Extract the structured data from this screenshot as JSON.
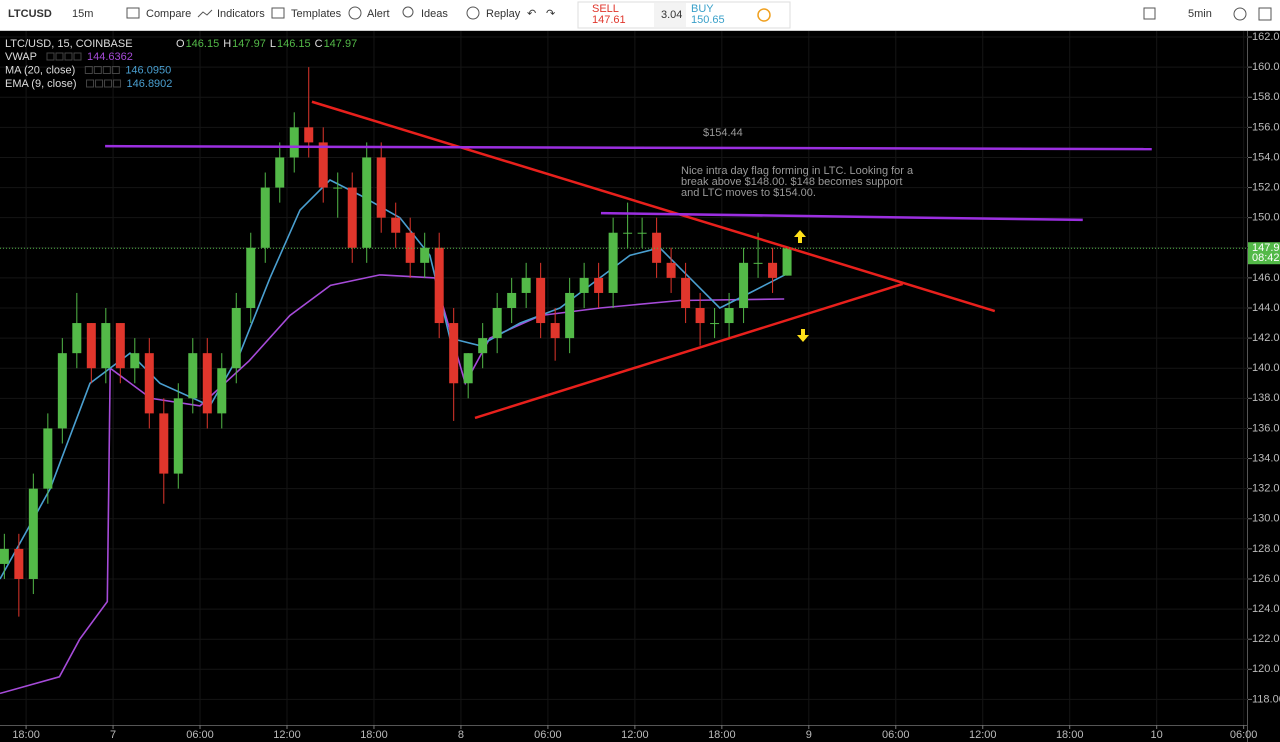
{
  "toolbar": {
    "symbol": "LTCUSD",
    "interval": "15m",
    "compare": "Compare",
    "indicators": "Indicators",
    "templates": "Templates",
    "alert": "Alert",
    "ideas": "Ideas",
    "replay": "Replay",
    "sell_label": "SELL",
    "sell_price": "147.61",
    "spread": "3.04",
    "buy_label": "BUY",
    "buy_price": "150.65",
    "right_interval": "5min"
  },
  "chart_data": {
    "type": "candlestick",
    "title": "LTC/USD, 15, COINBASE",
    "ohlc_legend": [
      {
        "label": "O",
        "value": "146.15"
      },
      {
        "label": "H",
        "value": "147.97"
      },
      {
        "label": "L",
        "value": "146.15"
      },
      {
        "label": "C",
        "value": "147.97"
      }
    ],
    "x": [
      -1.5,
      -0.5,
      0.5,
      1.5,
      2.5,
      3.5,
      4.5,
      5.5,
      6.5,
      7.5,
      8.5,
      9.5,
      10.5,
      11.5,
      12.5,
      13.5,
      14.5,
      15.5,
      16.5,
      17.5,
      18.5,
      19.5,
      20.5,
      21.5,
      22.5,
      23.5,
      24.5,
      25.5,
      26.5,
      27.5,
      28.5,
      29.5,
      30.5,
      31.5,
      32.5,
      33.5,
      34.5,
      35.5,
      36.5,
      37.5,
      38.5,
      39.5,
      40.5,
      41.5,
      42.5,
      43.5,
      44.5,
      45.5,
      46.5,
      47.5,
      48.5,
      49.5,
      50.5,
      51.5,
      52.5
    ],
    "open": [
      127,
      128,
      126,
      132,
      136,
      141,
      143,
      140,
      143,
      140,
      141,
      137,
      133,
      138,
      141,
      137,
      140,
      144,
      148,
      152,
      154,
      156,
      155,
      152,
      152,
      148,
      154,
      150,
      149,
      147,
      148,
      143,
      139,
      141,
      142,
      144,
      145,
      146,
      143,
      142,
      145,
      146,
      145,
      149,
      149,
      149,
      147,
      146,
      144,
      143,
      143,
      144,
      147,
      147,
      146.15
    ],
    "high": [
      129,
      129,
      133,
      137,
      142,
      145,
      143,
      144,
      143,
      142,
      142,
      138,
      139,
      142,
      142,
      141,
      145,
      149,
      153,
      155,
      157,
      160,
      156,
      153,
      153,
      155,
      155,
      151,
      150,
      149,
      149,
      144,
      141,
      143,
      145,
      146,
      147,
      147,
      144,
      146,
      147,
      147,
      150,
      151,
      150,
      150,
      148,
      147,
      145,
      144,
      145,
      148,
      149,
      148,
      147.97
    ],
    "low": [
      126,
      123.5,
      125,
      131,
      135,
      140,
      139,
      139,
      139,
      139,
      136,
      131,
      132,
      137,
      136,
      136,
      139,
      143,
      147,
      151,
      153,
      154,
      151,
      150,
      147,
      147,
      149,
      148,
      146,
      146,
      142,
      136.5,
      138,
      140,
      141,
      143,
      144,
      142,
      140.5,
      141,
      144,
      144,
      144,
      148,
      148,
      146,
      145,
      143,
      141.5,
      142,
      142,
      143,
      146,
      145,
      146.15
    ],
    "close": [
      128,
      126,
      132,
      136,
      141,
      143,
      140,
      143,
      140,
      141,
      137,
      133,
      138,
      141,
      137,
      140,
      144,
      148,
      152,
      154,
      156,
      155,
      152,
      152,
      148,
      154,
      150,
      149,
      147,
      148,
      143,
      139,
      141,
      142,
      144,
      145,
      146,
      143,
      142,
      145,
      146,
      145,
      149,
      149,
      149,
      147,
      146,
      144,
      143,
      143,
      144,
      147,
      147,
      146,
      147.97
    ],
    "up_color": "#53b948",
    "down_color": "#e0362c",
    "indicators": [
      {
        "name": "VWAP",
        "value": "144.6362",
        "color": "#a64bd9",
        "x": [
          -1.8,
          2.3,
          3.7,
          5.6,
          5.8,
          8.6,
          12,
          15.4,
          18.2,
          21,
          24.4,
          28.2,
          30.3,
          32,
          35.5,
          39.6,
          45.1,
          52.3
        ],
        "values": [
          118.4,
          119.5,
          122,
          124.5,
          140,
          138,
          137.5,
          140.5,
          143.5,
          145.5,
          146.2,
          146,
          139,
          142,
          143.5,
          144,
          144.5,
          144.6
        ]
      },
      {
        "name": "MA (20, close)",
        "value": "146.0950"
      },
      {
        "name": "EMA (9, close)",
        "value": "146.8902",
        "color": "#4a9fd0",
        "x": [
          -1.8,
          1.66,
          4.41,
          7.17,
          9.24,
          12.69,
          14.76,
          16.83,
          18.9,
          20.97,
          23.03,
          25.79,
          27.86,
          29.24,
          31.31,
          34.07,
          36.83,
          39.59,
          41.66,
          43.72,
          45.79,
          47.86,
          49.93,
          52.34
        ],
        "values": [
          126,
          132,
          139,
          141,
          139,
          137.5,
          141,
          146,
          150.5,
          152.5,
          151.5,
          150,
          147.5,
          142,
          141.5,
          143,
          144,
          146,
          147.5,
          148,
          146,
          144,
          145,
          146.2
        ]
      }
    ],
    "drawings": [
      {
        "color": "#e8201c",
        "x": [
          19.72,
          66.83
        ],
        "y": [
          157.7,
          143.8
        ]
      },
      {
        "color": "#e8201c",
        "x": [
          30.97,
          60.48
        ],
        "y": [
          136.7,
          145.6
        ]
      },
      {
        "color": "#9b2fe0",
        "x": [
          5.45,
          77.66
        ],
        "y": [
          154.75,
          154.55
        ]
      },
      {
        "color": "#9b2fe0",
        "x": [
          39.66,
          72.9
        ],
        "y": [
          150.3,
          149.85
        ]
      }
    ],
    "annotations": {
      "price_note": "$154.44",
      "note": [
        "Nice intra day flag forming in LTC. Looking for a",
        "break above $148.00. $148 becomes support",
        "and LTC moves to $154.00."
      ]
    },
    "countdown": "08:42",
    "ylim": [
      116.5,
      162.4
    ],
    "yticks": [
      {
        "value": 118,
        "label": "118.00"
      },
      {
        "value": 120,
        "label": "120.00"
      },
      {
        "value": 122,
        "label": "122.00"
      },
      {
        "value": 124,
        "label": "124.00"
      },
      {
        "value": 126,
        "label": "126.00"
      },
      {
        "value": 128,
        "label": "128.00"
      },
      {
        "value": 130,
        "label": "130.00"
      },
      {
        "value": 132,
        "label": "132.00"
      },
      {
        "value": 134,
        "label": "134.00"
      },
      {
        "value": 136,
        "label": "136.00"
      },
      {
        "value": 138,
        "label": "138.00"
      },
      {
        "value": 140,
        "label": "140.00"
      },
      {
        "value": 142,
        "label": "142.00"
      },
      {
        "value": 144,
        "label": "144.00"
      },
      {
        "value": 146,
        "label": "146.00"
      },
      {
        "value": 148,
        "label": "148.00"
      },
      {
        "value": 150,
        "label": "150.00"
      },
      {
        "value": 152,
        "label": "152.00"
      },
      {
        "value": 154,
        "label": "154.00"
      },
      {
        "value": 156,
        "label": "156.00"
      },
      {
        "value": 158,
        "label": "158.00"
      },
      {
        "value": 160,
        "label": "160.00"
      },
      {
        "value": 162,
        "label": "162.00"
      }
    ],
    "xlim": [
      -1.8,
      84.3
    ],
    "xticks": [
      {
        "value": 0,
        "label": "18:00"
      },
      {
        "value": 6,
        "label": "7"
      },
      {
        "value": 12,
        "label": "06:00"
      },
      {
        "value": 18,
        "label": "12:00"
      },
      {
        "value": 24,
        "label": "18:00"
      },
      {
        "value": 30,
        "label": "8"
      },
      {
        "value": 36,
        "label": "06:00"
      },
      {
        "value": 42,
        "label": "12:00"
      },
      {
        "value": 48,
        "label": "18:00"
      },
      {
        "value": 54,
        "label": "9"
      },
      {
        "value": 60,
        "label": "06:00"
      },
      {
        "value": 66,
        "label": "12:00"
      },
      {
        "value": 72,
        "label": "18:00"
      },
      {
        "value": 78,
        "label": "10"
      },
      {
        "value": 84,
        "label": "06:00"
      }
    ]
  }
}
